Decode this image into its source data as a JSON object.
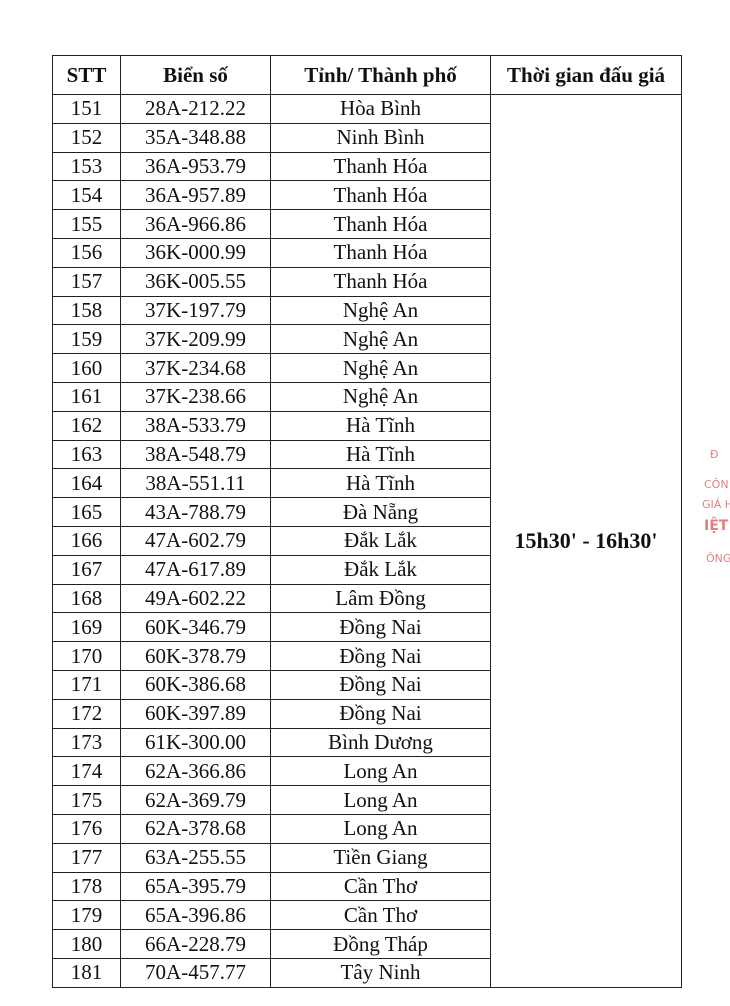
{
  "table": {
    "header": [
      "STT",
      "Biển số",
      "Tỉnh/ Thành phố",
      "Thời gian đấu giá"
    ],
    "rows": [
      [
        "151",
        "28A-212.22",
        "Hòa Bình"
      ],
      [
        "152",
        "35A-348.88",
        "Ninh Bình"
      ],
      [
        "153",
        "36A-953.79",
        "Thanh Hóa"
      ],
      [
        "154",
        "36A-957.89",
        "Thanh Hóa"
      ],
      [
        "155",
        "36A-966.86",
        "Thanh Hóa"
      ],
      [
        "156",
        "36K-000.99",
        "Thanh Hóa"
      ],
      [
        "157",
        "36K-005.55",
        "Thanh Hóa"
      ],
      [
        "158",
        "37K-197.79",
        "Nghệ An"
      ],
      [
        "159",
        "37K-209.99",
        "Nghệ An"
      ],
      [
        "160",
        "37K-234.68",
        "Nghệ An"
      ],
      [
        "161",
        "37K-238.66",
        "Nghệ An"
      ],
      [
        "162",
        "38A-533.79",
        "Hà Tĩnh"
      ],
      [
        "163",
        "38A-548.79",
        "Hà Tĩnh"
      ],
      [
        "164",
        "38A-551.11",
        "Hà Tĩnh"
      ],
      [
        "165",
        "43A-788.79",
        "Đà Nẵng"
      ],
      [
        "166",
        "47A-602.79",
        "Đắk Lắk"
      ],
      [
        "167",
        "47A-617.89",
        "Đắk Lắk"
      ],
      [
        "168",
        "49A-602.22",
        "Lâm Đồng"
      ],
      [
        "169",
        "60K-346.79",
        "Đồng Nai"
      ],
      [
        "170",
        "60K-378.79",
        "Đồng Nai"
      ],
      [
        "171",
        "60K-386.68",
        "Đồng Nai"
      ],
      [
        "172",
        "60K-397.89",
        "Đồng Nai"
      ],
      [
        "173",
        "61K-300.00",
        "Bình Dương"
      ],
      [
        "174",
        "62A-366.86",
        "Long An"
      ],
      [
        "175",
        "62A-369.79",
        "Long An"
      ],
      [
        "176",
        "62A-378.68",
        "Long An"
      ],
      [
        "177",
        "63A-255.55",
        "Tiền Giang"
      ],
      [
        "178",
        "65A-395.79",
        "Cần Thơ"
      ],
      [
        "179",
        "65A-396.86",
        "Cần Thơ"
      ],
      [
        "180",
        "66A-228.79",
        "Đồng Tháp"
      ],
      [
        "181",
        "70A-457.77",
        "Tây Ninh"
      ]
    ],
    "time": "15h30' - 16h30'"
  },
  "stamp": [
    "Đ",
    "CÔN",
    "GIÁ H",
    "IỆT",
    "ÔNG"
  ]
}
